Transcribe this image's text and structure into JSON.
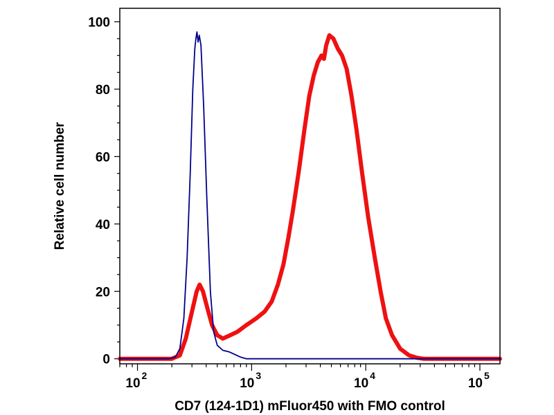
{
  "chart_data": {
    "type": "line",
    "title": "",
    "xlabel": "CD7 (124-1D1) mFluor450 with FMO control",
    "ylabel": "Relative cell number",
    "x_scale": "log",
    "xlim": [
      70,
      150000
    ],
    "ylim": [
      -1.5,
      104
    ],
    "x_ticks": [
      {
        "value": 100,
        "base": "10",
        "exp": "2"
      },
      {
        "value": 1000,
        "base": "10",
        "exp": "3"
      },
      {
        "value": 10000,
        "base": "10",
        "exp": "4"
      },
      {
        "value": 100000,
        "base": "10",
        "exp": "5"
      }
    ],
    "y_ticks": [
      {
        "value": 0,
        "label": "0"
      },
      {
        "value": 20,
        "label": "20"
      },
      {
        "value": 40,
        "label": "40"
      },
      {
        "value": 60,
        "label": "60"
      },
      {
        "value": 80,
        "label": "80"
      },
      {
        "value": 100,
        "label": "100"
      }
    ],
    "grid": false,
    "legend": "none",
    "series": [
      {
        "color": "#00008b",
        "line": "thin",
        "points": [
          [
            70,
            0
          ],
          [
            190,
            0
          ],
          [
            215,
            0.5
          ],
          [
            235,
            3
          ],
          [
            255,
            12
          ],
          [
            272,
            30
          ],
          [
            290,
            55
          ],
          [
            305,
            80
          ],
          [
            318,
            92
          ],
          [
            325,
            95
          ],
          [
            332,
            97
          ],
          [
            340,
            94
          ],
          [
            348,
            96
          ],
          [
            360,
            93
          ],
          [
            380,
            75
          ],
          [
            405,
            48
          ],
          [
            435,
            20
          ],
          [
            465,
            8
          ],
          [
            500,
            4
          ],
          [
            560,
            2.5
          ],
          [
            640,
            2
          ],
          [
            720,
            1.2
          ],
          [
            800,
            0.5
          ],
          [
            900,
            0
          ],
          [
            150000,
            0
          ]
        ]
      },
      {
        "color": "#ee1111",
        "line": "thick",
        "points": [
          [
            70,
            0
          ],
          [
            200,
            0
          ],
          [
            235,
            1
          ],
          [
            265,
            6
          ],
          [
            300,
            14
          ],
          [
            330,
            20
          ],
          [
            350,
            22
          ],
          [
            375,
            20
          ],
          [
            410,
            15
          ],
          [
            450,
            10
          ],
          [
            500,
            7
          ],
          [
            560,
            6
          ],
          [
            650,
            7
          ],
          [
            750,
            8
          ],
          [
            900,
            10
          ],
          [
            1100,
            12
          ],
          [
            1300,
            14
          ],
          [
            1500,
            17
          ],
          [
            1700,
            22
          ],
          [
            1900,
            28
          ],
          [
            2100,
            36
          ],
          [
            2300,
            44
          ],
          [
            2600,
            56
          ],
          [
            2900,
            68
          ],
          [
            3200,
            78
          ],
          [
            3500,
            84
          ],
          [
            3800,
            88
          ],
          [
            4100,
            90
          ],
          [
            4300,
            89
          ],
          [
            4500,
            93
          ],
          [
            4800,
            96
          ],
          [
            5200,
            95
          ],
          [
            5700,
            92
          ],
          [
            6200,
            90
          ],
          [
            6800,
            86
          ],
          [
            7500,
            78
          ],
          [
            8300,
            68
          ],
          [
            9300,
            55
          ],
          [
            10500,
            42
          ],
          [
            12000,
            30
          ],
          [
            13500,
            20
          ],
          [
            15000,
            12
          ],
          [
            17000,
            7
          ],
          [
            20000,
            3
          ],
          [
            24000,
            1
          ],
          [
            28000,
            0.3
          ],
          [
            32000,
            0
          ],
          [
            150000,
            0
          ]
        ]
      }
    ]
  }
}
